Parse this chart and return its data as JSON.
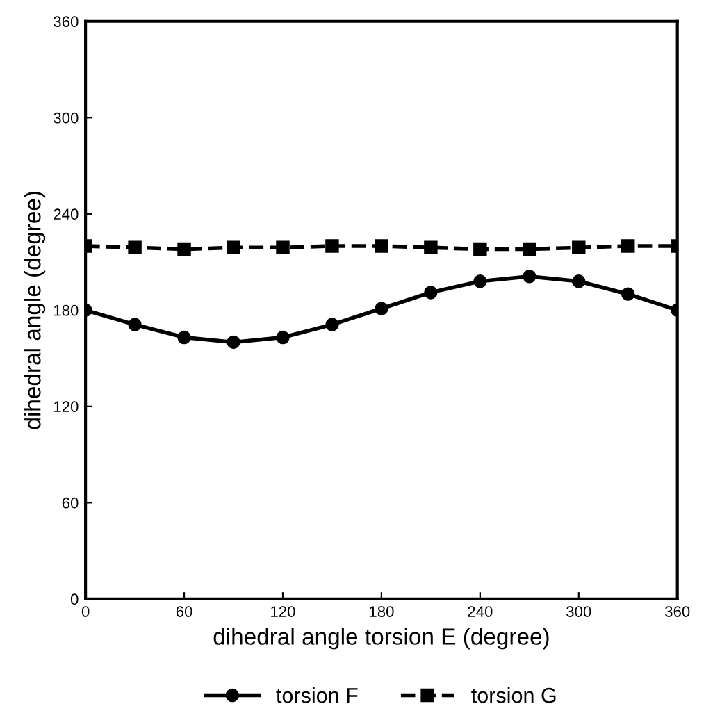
{
  "chart_data": {
    "type": "line",
    "xlabel": "dihedral angle torsion E (degree)",
    "ylabel": "dihedral angle (degree)",
    "x": [
      0,
      30,
      60,
      90,
      120,
      150,
      180,
      210,
      240,
      270,
      300,
      330,
      360
    ],
    "series": [
      {
        "name": "torsion F",
        "color": "#000000",
        "marker": "circle",
        "line_style": "solid",
        "values": [
          180,
          171,
          163,
          160,
          163,
          171,
          181,
          191,
          198,
          201,
          198,
          190,
          180
        ]
      },
      {
        "name": "torsion G",
        "color": "#000000",
        "marker": "square",
        "line_style": "dashed",
        "values": [
          220,
          219,
          218,
          219,
          219,
          220,
          220,
          219,
          218,
          218,
          219,
          220,
          220
        ]
      }
    ],
    "xlim": [
      0,
      360
    ],
    "ylim": [
      0,
      360
    ],
    "xticks": [
      0,
      60,
      120,
      180,
      240,
      300,
      360
    ],
    "yticks": [
      0,
      60,
      120,
      180,
      240,
      300,
      360
    ],
    "grid": false,
    "legend": "bottom"
  }
}
